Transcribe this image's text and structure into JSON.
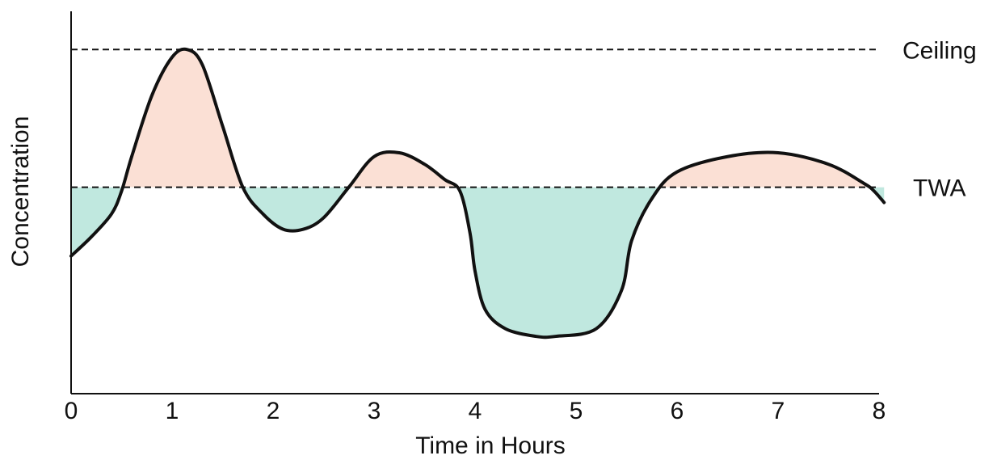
{
  "chart_data": {
    "type": "area",
    "title": "",
    "xlabel": "Time in Hours",
    "ylabel": "Concentration",
    "x_ticks": [
      0,
      1,
      2,
      3,
      4,
      5,
      6,
      7,
      8
    ],
    "xlim": [
      0,
      8
    ],
    "ylim": [
      0,
      1
    ],
    "grid": false,
    "legend": "none",
    "reference_lines": [
      {
        "label": "Ceiling",
        "value": 0.9
      },
      {
        "label": "TWA",
        "value": 0.54
      }
    ],
    "curve": {
      "x": [
        0,
        0.2,
        0.4,
        0.5,
        0.6,
        0.8,
        1.0,
        1.15,
        1.3,
        1.5,
        1.7,
        1.9,
        2.1,
        2.3,
        2.5,
        2.75,
        3.0,
        3.25,
        3.5,
        3.7,
        3.85,
        3.95,
        4.0,
        4.1,
        4.3,
        4.6,
        4.8,
        5.2,
        5.45,
        5.55,
        5.75,
        6.0,
        6.5,
        7.0,
        7.5,
        7.85,
        7.95,
        8.05
      ],
      "y": [
        0.36,
        0.41,
        0.47,
        0.53,
        0.62,
        0.78,
        0.88,
        0.9,
        0.86,
        0.7,
        0.54,
        0.47,
        0.43,
        0.43,
        0.46,
        0.54,
        0.62,
        0.63,
        0.6,
        0.56,
        0.53,
        0.42,
        0.32,
        0.22,
        0.17,
        0.15,
        0.15,
        0.17,
        0.27,
        0.4,
        0.51,
        0.58,
        0.62,
        0.63,
        0.6,
        0.55,
        0.53,
        0.5
      ]
    },
    "colors": {
      "above_fill": "#fbe0d5",
      "below_fill": "#c0e8df",
      "curve_stroke": "#111111",
      "reference_stroke": "#111111",
      "axis_stroke": "#111111"
    }
  }
}
